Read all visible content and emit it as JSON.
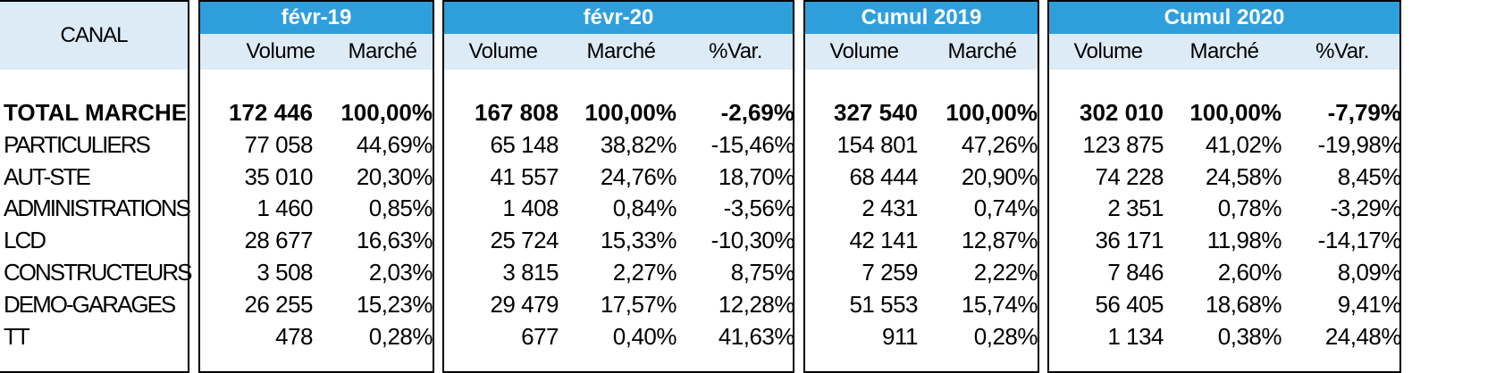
{
  "canal_header": "CANAL",
  "groups": [
    {
      "title": "févr-19",
      "cols": [
        "Volume",
        "Marché"
      ]
    },
    {
      "title": "févr-20",
      "cols": [
        "Volume",
        "Marché",
        "%Var."
      ]
    },
    {
      "title": "Cumul 2019",
      "cols": [
        "Volume",
        "Marché"
      ]
    },
    {
      "title": "Cumul 2020",
      "cols": [
        "Volume",
        "Marché",
        "%Var."
      ]
    }
  ],
  "rows": [
    {
      "label": "TOTAL MARCHE",
      "bold": true,
      "v": [
        [
          "172 446",
          "100,00%"
        ],
        [
          "167 808",
          "100,00%",
          "-2,69%"
        ],
        [
          "327 540",
          "100,00%"
        ],
        [
          "302 010",
          "100,00%",
          "-7,79%"
        ]
      ]
    },
    {
      "label": "PARTICULIERS",
      "v": [
        [
          "77 058",
          "44,69%"
        ],
        [
          "65 148",
          "38,82%",
          "-15,46%"
        ],
        [
          "154 801",
          "47,26%"
        ],
        [
          "123 875",
          "41,02%",
          "-19,98%"
        ]
      ]
    },
    {
      "label": "AUT-STE",
      "v": [
        [
          "35 010",
          "20,30%"
        ],
        [
          "41 557",
          "24,76%",
          "18,70%"
        ],
        [
          "68 444",
          "20,90%"
        ],
        [
          "74 228",
          "24,58%",
          "8,45%"
        ]
      ]
    },
    {
      "label": "ADMINISTRATIONS",
      "v": [
        [
          "1 460",
          "0,85%"
        ],
        [
          "1 408",
          "0,84%",
          "-3,56%"
        ],
        [
          "2 431",
          "0,74%"
        ],
        [
          "2 351",
          "0,78%",
          "-3,29%"
        ]
      ]
    },
    {
      "label": "LCD",
      "v": [
        [
          "28 677",
          "16,63%"
        ],
        [
          "25 724",
          "15,33%",
          "-10,30%"
        ],
        [
          "42 141",
          "12,87%"
        ],
        [
          "36 171",
          "11,98%",
          "-14,17%"
        ]
      ]
    },
    {
      "label": "CONSTRUCTEURS",
      "v": [
        [
          "3 508",
          "2,03%"
        ],
        [
          "3 815",
          "2,27%",
          "8,75%"
        ],
        [
          "7 259",
          "2,22%"
        ],
        [
          "7 846",
          "2,60%",
          "8,09%"
        ]
      ]
    },
    {
      "label": "DEMO-GARAGES",
      "v": [
        [
          "26 255",
          "15,23%"
        ],
        [
          "29 479",
          "17,57%",
          "12,28%"
        ],
        [
          "51 553",
          "15,74%"
        ],
        [
          "56 405",
          "18,68%",
          "9,41%"
        ]
      ]
    },
    {
      "label": "TT",
      "v": [
        [
          "478",
          "0,28%"
        ],
        [
          "677",
          "0,40%",
          "41,63%"
        ],
        [
          "911",
          "0,28%"
        ],
        [
          "1 134",
          "0,38%",
          "24,48%"
        ]
      ]
    }
  ]
}
